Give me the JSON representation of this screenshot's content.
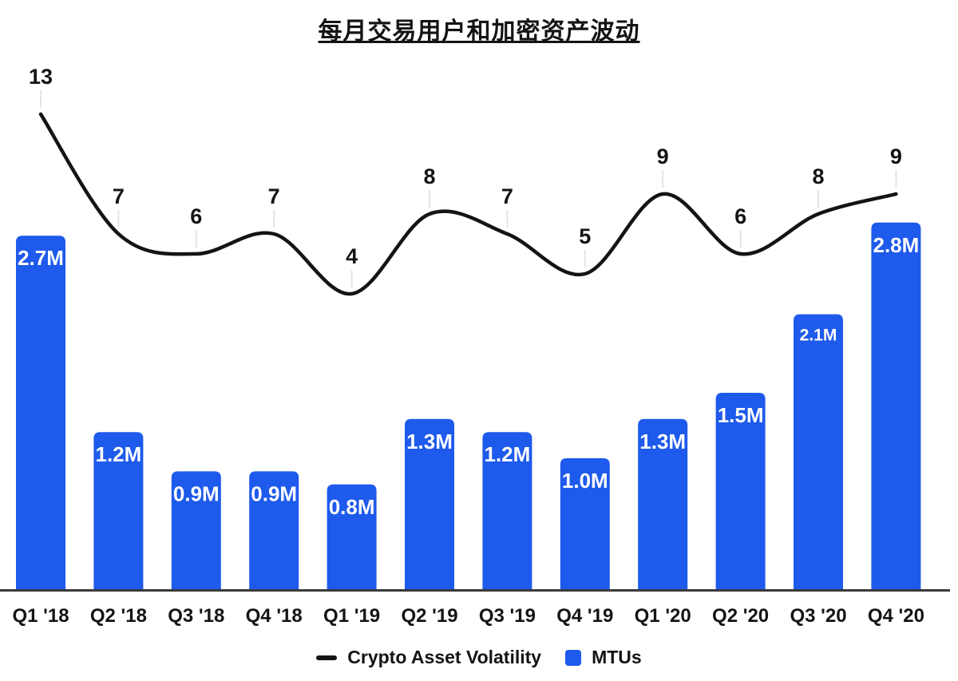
{
  "title": "每月交易用户和加密资产波动",
  "colors": {
    "bar": "#1e5aeb",
    "line": "#141414",
    "axis": "#3a3a3a",
    "tick": "#e4e4e4",
    "bar_label": "#ffffff",
    "text": "#141414"
  },
  "legend": [
    {
      "label": "Crypto Asset Volatility",
      "swatch": "line-dash",
      "color": "#141414"
    },
    {
      "label": "MTUs",
      "swatch": "square",
      "color": "#1e5aeb"
    }
  ],
  "chart_data": {
    "type": "bar",
    "title": "每月交易用户和加密资产波动",
    "categories": [
      "Q1 '18",
      "Q2 '18",
      "Q3 '18",
      "Q4 '18",
      "Q1 '19",
      "Q2 '19",
      "Q3 '19",
      "Q4 '19",
      "Q1 '20",
      "Q2 '20",
      "Q3 '20",
      "Q4 '20"
    ],
    "series": [
      {
        "name": "MTUs",
        "type": "bar",
        "unit": "M",
        "values": [
          2.7,
          1.2,
          0.9,
          0.9,
          0.8,
          1.3,
          1.2,
          1.0,
          1.3,
          1.5,
          2.1,
          2.8
        ],
        "labels": [
          "2.7M",
          "1.2M",
          "0.9M",
          "0.9M",
          "0.8M",
          "1.3M",
          "1.2M",
          "1.0M",
          "1.3M",
          "1.5M",
          "2.1M",
          "2.8M"
        ]
      },
      {
        "name": "Crypto Asset Volatility",
        "type": "line",
        "values": [
          13,
          7,
          6,
          7,
          4,
          8,
          7,
          5,
          9,
          6,
          8,
          9
        ]
      }
    ],
    "legend_position": "bottom",
    "grid": false,
    "y_axis_visible": false,
    "bar_ylim": [
      0,
      3
    ],
    "line_ylim": [
      3.5,
      13.5
    ]
  }
}
